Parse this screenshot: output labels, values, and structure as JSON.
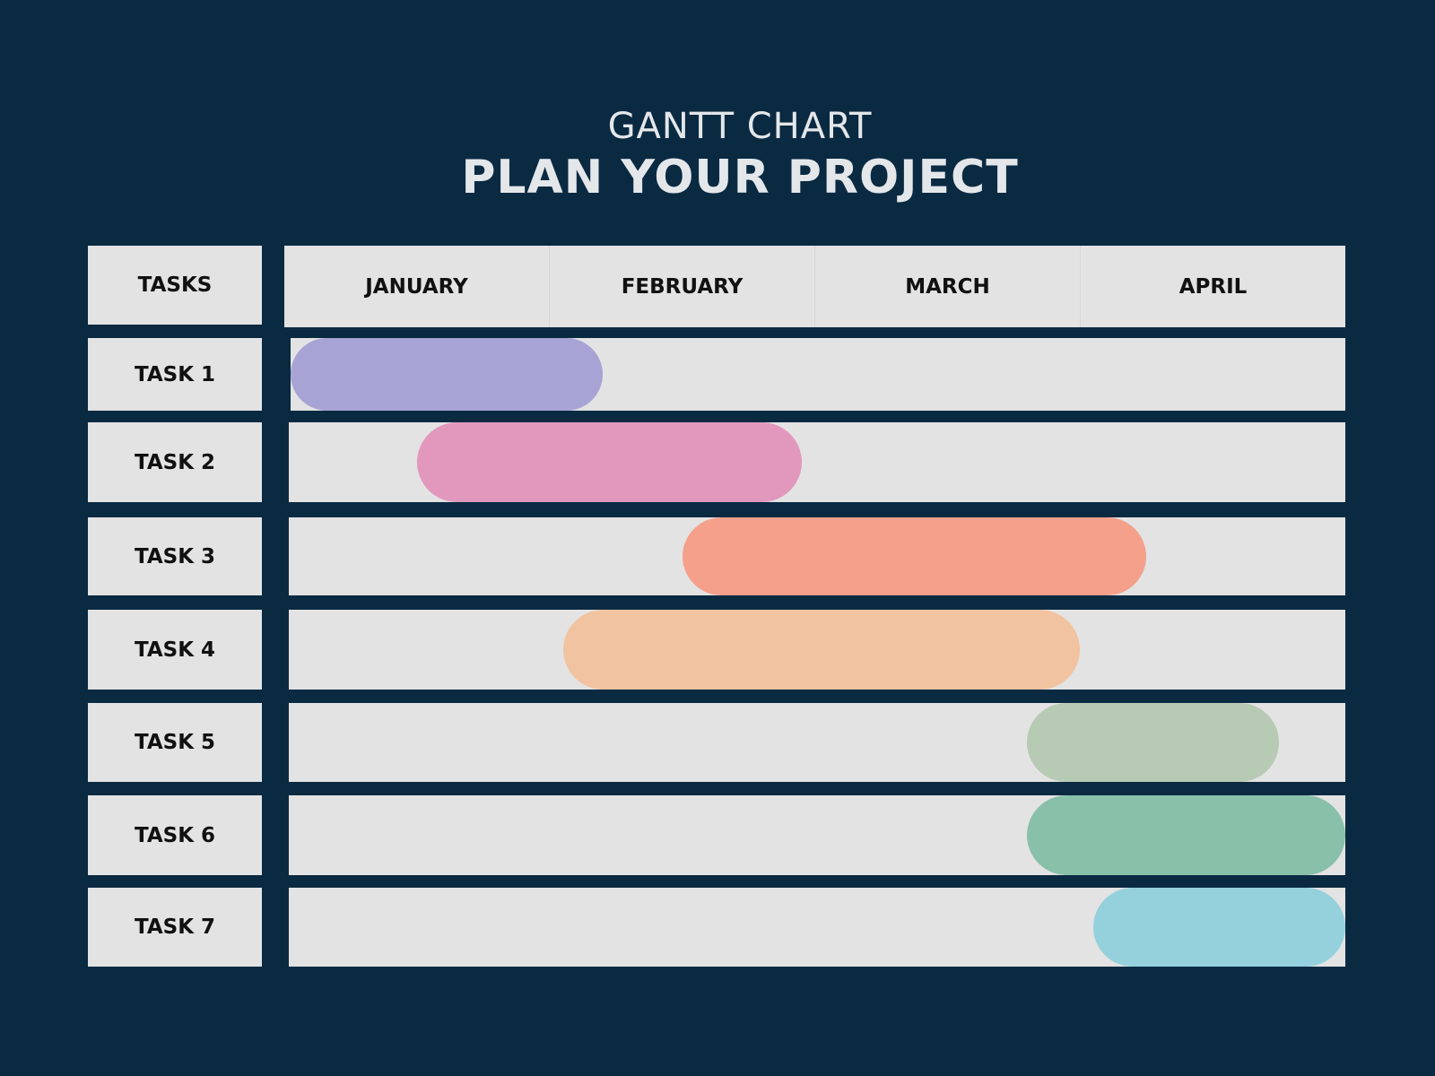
{
  "title": "GANTT CHART",
  "subtitle": "PLAN YOUR PROJECT",
  "chart_data": {
    "type": "gantt",
    "title": "GANTT CHART",
    "subtitle": "PLAN YOUR PROJECT",
    "task_header": "TASKS",
    "months": [
      "JANUARY",
      "FEBRUARY",
      "MARCH",
      "APRIL"
    ],
    "x_unit": "months from start of January",
    "xlim": [
      0,
      4
    ],
    "tasks": [
      {
        "name": "TASK 1",
        "start": 0.0,
        "end": 1.2,
        "color": "#a8a3d5"
      },
      {
        "name": "TASK 2",
        "start": 0.5,
        "end": 1.95,
        "color": "#e298bd"
      },
      {
        "name": "TASK 3",
        "start": 1.5,
        "end": 3.25,
        "color": "#f4a08b"
      },
      {
        "name": "TASK 4",
        "start": 1.05,
        "end": 3.0,
        "color": "#f2c3a0"
      },
      {
        "name": "TASK 5",
        "start": 2.8,
        "end": 3.75,
        "color": "#b7cab4"
      },
      {
        "name": "TASK 6",
        "start": 2.8,
        "end": 4.0,
        "color": "#88c0aa"
      },
      {
        "name": "TASK 7",
        "start": 3.05,
        "end": 4.0,
        "color": "#94d1dd"
      }
    ]
  },
  "colors": {
    "background": "#0a2a42",
    "cell": "#e3e3e3",
    "title": "#e4e7ea"
  }
}
